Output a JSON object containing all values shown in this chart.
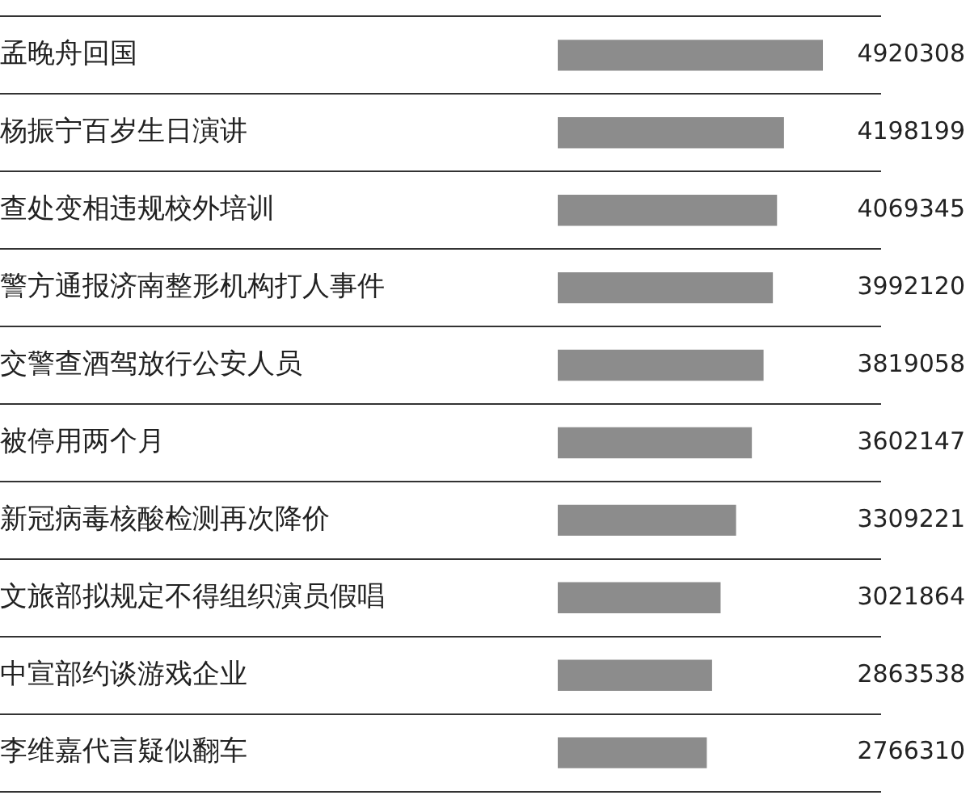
{
  "chart_data": {
    "type": "bar",
    "orientation": "horizontal",
    "categories": [
      "孟晚舟回国",
      "杨振宁百岁生日演讲",
      "查处变相违规校外培训",
      "警方通报济南整形机构打人事件",
      "交警查酒驾放行公安人员",
      "被停用两个月",
      "新冠病毒核酸检测再次降价",
      "文旅部拟规定不得组织演员假唱",
      "中宣部约谈游戏企业",
      "李维嘉代言疑似翻车"
    ],
    "values": [
      4920308,
      4198199,
      4069345,
      3992120,
      3819058,
      3602147,
      3309221,
      3021864,
      2863538,
      2766310
    ],
    "color": "#8c8c8c",
    "data_labels": true,
    "grid": "y",
    "legend": false
  }
}
